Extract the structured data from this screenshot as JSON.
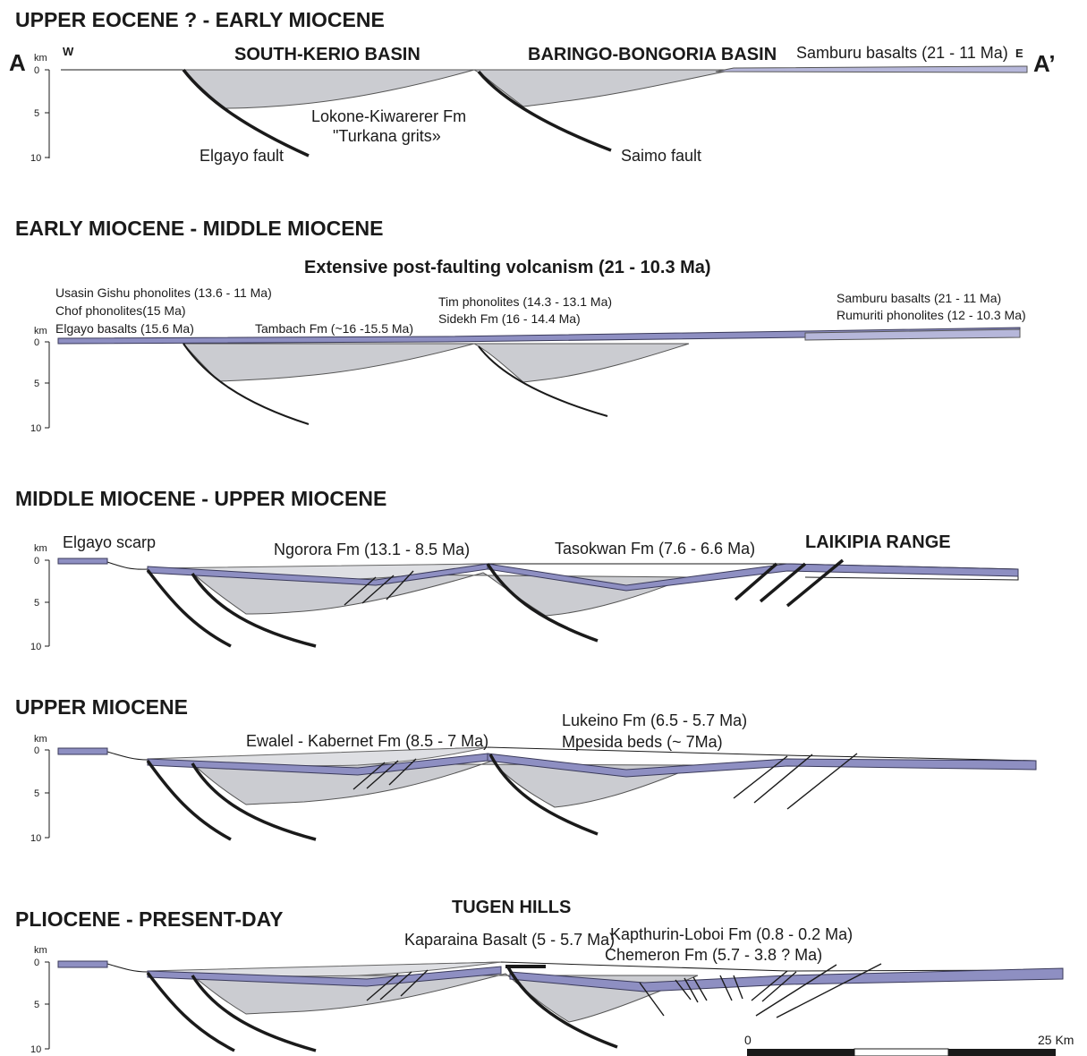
{
  "panels": [
    {
      "title": "UPPER EOCENE ? - EARLY MIOCENE",
      "left_label": "A",
      "right_label": "A’",
      "west": "W",
      "east": "E",
      "basin_1": "SOUTH-KERIO BASIN",
      "basin_2": "BARINGO-BONGORIA BASIN",
      "samburu": "Samburu basalts (21 - 11 Ma)",
      "lokone_1": "Lokone-Kiwarerer Fm",
      "lokone_2": "\"Turkana grits»",
      "elgayo_fault": "Elgayo fault",
      "saimo_fault": "Saimo fault"
    },
    {
      "title": "EARLY MIOCENE - MIDDLE MIOCENE",
      "volcanism": "Extensive post-faulting volcanism (21 - 10.3 Ma)",
      "usasin": "Usasin Gishu phonolites (13.6 - 11 Ma)",
      "chof": "Chof phonolites(15 Ma)",
      "elgayo_basalts": "Elgayo basalts (15.6 Ma)",
      "tambach": "Tambach Fm (~16 -15.5 Ma)",
      "tim": "Tim phonolites (14.3 - 13.1 Ma)",
      "sidekh": "Sidekh Fm (16 - 14.4 Ma)",
      "samburu": "Samburu basalts (21 - 11 Ma)",
      "rumuriti": "Rumuriti phonolites (12 - 10.3 Ma)"
    },
    {
      "title": "MIDDLE MIOCENE - UPPER MIOCENE",
      "elgayo_scarp": "Elgayo scarp",
      "ngorora": "Ngorora Fm (13.1 - 8.5 Ma)",
      "tasokwan": "Tasokwan Fm (7.6 - 6.6 Ma)",
      "laikipia": "LAIKIPIA RANGE"
    },
    {
      "title": "UPPER MIOCENE",
      "ewalel": "Ewalel - Kabernet Fm (8.5 - 7 Ma)",
      "lukeino": "Lukeino Fm (6.5 - 5.7 Ma)",
      "mpesida": "Mpesida beds (~ 7Ma)"
    },
    {
      "title": "PLIOCENE - PRESENT-DAY",
      "tugen": "TUGEN HILLS",
      "kaparaina": "Kaparaina Basalt (5 - 5.7 Ma)",
      "kapthurin": "Kapthurin-Loboi Fm (0.8 - 0.2 Ma)",
      "chemeron": "Chemeron Fm (5.7 - 3.8 ? Ma)"
    }
  ],
  "axis": {
    "unit": "km",
    "ticks": [
      "0",
      "5",
      "10"
    ]
  },
  "scale_bar": {
    "start": "0",
    "end": "25 Km"
  },
  "colors": {
    "basin_fill": "#cbccd1",
    "volcanic_fill": "#8e8fc2",
    "fault_line": "#1a1a1a"
  }
}
